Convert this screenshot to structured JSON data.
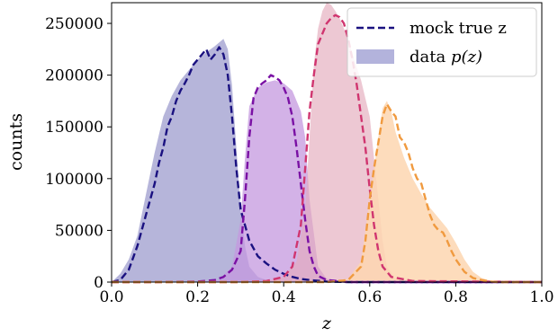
{
  "chart_data": {
    "type": "area",
    "xlabel": "z",
    "ylabel": "counts",
    "xlim": [
      0.0,
      1.0
    ],
    "ylim": [
      0,
      270000
    ],
    "x_ticks": [
      0.0,
      0.2,
      0.4,
      0.6,
      0.8,
      1.0
    ],
    "x_tick_labels": [
      "0.0",
      "0.2",
      "0.4",
      "0.6",
      "0.8",
      "1.0"
    ],
    "y_ticks": [
      0,
      50000,
      100000,
      150000,
      200000,
      250000
    ],
    "y_tick_labels": [
      "0",
      "50000",
      "100000",
      "150000",
      "200000",
      "250000"
    ],
    "grid": false,
    "legend": {
      "placement": "top-right",
      "entries": [
        {
          "label": "mock true z",
          "style": "dashed-line",
          "color": "#1a1180"
        },
        {
          "label": "data p(z)",
          "label_text": "data ",
          "label_math": "p(z)",
          "style": "filled",
          "color": "#b3b3dc"
        }
      ]
    },
    "series": [
      {
        "kind": "filled",
        "color": "#aeadd6",
        "opacity": 0.9,
        "x": [
          0.0,
          0.02,
          0.04,
          0.06,
          0.08,
          0.1,
          0.12,
          0.14,
          0.16,
          0.18,
          0.2,
          0.22,
          0.24,
          0.26,
          0.27,
          0.28,
          0.29,
          0.3,
          0.31,
          0.32,
          0.34,
          0.36,
          0.38,
          0.4,
          0.45,
          0.5,
          0.6,
          0.7,
          0.8,
          1.0
        ],
        "y": [
          0,
          8000,
          22000,
          45000,
          85000,
          125000,
          160000,
          180000,
          195000,
          205000,
          215000,
          222000,
          228000,
          235000,
          225000,
          190000,
          130000,
          70000,
          35000,
          15000,
          5000,
          2000,
          1000,
          500,
          0,
          0,
          0,
          0,
          0,
          0
        ]
      },
      {
        "kind": "filled",
        "color": "#c498df",
        "opacity": 0.75,
        "x": [
          0.0,
          0.1,
          0.2,
          0.25,
          0.28,
          0.3,
          0.31,
          0.32,
          0.34,
          0.36,
          0.38,
          0.4,
          0.42,
          0.44,
          0.45,
          0.46,
          0.48,
          0.5,
          0.55,
          0.6,
          0.7,
          1.0
        ],
        "y": [
          0,
          0,
          0,
          2000,
          15000,
          60000,
          120000,
          170000,
          188000,
          193000,
          195000,
          192000,
          185000,
          165000,
          140000,
          80000,
          15000,
          3000,
          0,
          0,
          0,
          0
        ],
        "peak": 195000
      },
      {
        "kind": "filled",
        "color": "#e3aabc",
        "opacity": 0.65,
        "x": [
          0.0,
          0.3,
          0.36,
          0.4,
          0.43,
          0.45,
          0.46,
          0.47,
          0.48,
          0.49,
          0.5,
          0.51,
          0.52,
          0.53,
          0.54,
          0.55,
          0.56,
          0.58,
          0.6,
          0.61,
          0.62,
          0.63,
          0.64,
          0.66,
          0.7,
          1.0
        ],
        "y": [
          0,
          0,
          1000,
          5000,
          20000,
          70000,
          140000,
          210000,
          245000,
          262000,
          270000,
          268000,
          262000,
          255000,
          245000,
          235000,
          220000,
          195000,
          160000,
          120000,
          80000,
          40000,
          15000,
          3000,
          0,
          0
        ],
        "peak": 270000
      },
      {
        "kind": "filled",
        "color": "#fdd6b0",
        "opacity": 0.85,
        "x": [
          0.0,
          0.5,
          0.55,
          0.58,
          0.6,
          0.62,
          0.63,
          0.64,
          0.65,
          0.66,
          0.68,
          0.7,
          0.72,
          0.74,
          0.76,
          0.78,
          0.8,
          0.82,
          0.84,
          0.86,
          0.88,
          0.9,
          0.95,
          1.0
        ],
        "y": [
          0,
          0,
          3000,
          20000,
          80000,
          140000,
          168000,
          175000,
          165000,
          145000,
          120000,
          100000,
          85000,
          72000,
          62000,
          52000,
          38000,
          22000,
          10000,
          4000,
          1500,
          500,
          0,
          0
        ],
        "peak": 175000
      },
      {
        "kind": "dashed",
        "name": "mock true z",
        "color": "#1a1180",
        "x": [
          0.0,
          0.02,
          0.04,
          0.06,
          0.08,
          0.1,
          0.11,
          0.12,
          0.13,
          0.14,
          0.15,
          0.16,
          0.17,
          0.18,
          0.19,
          0.2,
          0.21,
          0.22,
          0.23,
          0.24,
          0.25,
          0.26,
          0.27,
          0.28,
          0.29,
          0.3,
          0.32,
          0.34,
          0.36,
          0.38,
          0.4,
          0.42,
          0.44,
          0.46,
          0.5,
          0.55,
          0.6,
          1.0
        ],
        "y": [
          0,
          2000,
          12000,
          35000,
          65000,
          95000,
          115000,
          130000,
          150000,
          160000,
          175000,
          185000,
          192000,
          200000,
          210000,
          215000,
          220000,
          225000,
          215000,
          220000,
          227000,
          220000,
          200000,
          160000,
          110000,
          70000,
          40000,
          25000,
          18000,
          12000,
          8000,
          5000,
          3000,
          2000,
          500,
          0,
          0,
          0
        ]
      },
      {
        "kind": "dashed",
        "color": "#7a10a4",
        "x": [
          0.0,
          0.1,
          0.2,
          0.24,
          0.26,
          0.28,
          0.3,
          0.31,
          0.32,
          0.33,
          0.34,
          0.35,
          0.36,
          0.37,
          0.38,
          0.39,
          0.4,
          0.41,
          0.42,
          0.43,
          0.44,
          0.45,
          0.46,
          0.47,
          0.48,
          0.5,
          0.55,
          0.6,
          1.0
        ],
        "y": [
          0,
          0,
          500,
          2000,
          5000,
          12000,
          30000,
          80000,
          140000,
          178000,
          188000,
          192000,
          195000,
          200000,
          198000,
          195000,
          188000,
          178000,
          160000,
          130000,
          95000,
          60000,
          30000,
          15000,
          6000,
          2000,
          0,
          0,
          0
        ]
      },
      {
        "kind": "dashed",
        "color": "#d0356f",
        "x": [
          0.0,
          0.3,
          0.36,
          0.4,
          0.42,
          0.44,
          0.45,
          0.46,
          0.47,
          0.48,
          0.49,
          0.5,
          0.51,
          0.52,
          0.53,
          0.54,
          0.55,
          0.56,
          0.57,
          0.58,
          0.59,
          0.6,
          0.61,
          0.62,
          0.63,
          0.65,
          0.7,
          1.0
        ],
        "y": [
          0,
          0,
          1000,
          5000,
          15000,
          55000,
          110000,
          165000,
          200000,
          230000,
          240000,
          250000,
          255000,
          258000,
          256000,
          250000,
          235000,
          215000,
          190000,
          160000,
          130000,
          90000,
          55000,
          30000,
          15000,
          5000,
          1000,
          0
        ]
      },
      {
        "kind": "dashed",
        "color": "#f09a3f",
        "x": [
          0.0,
          0.5,
          0.55,
          0.58,
          0.59,
          0.6,
          0.61,
          0.62,
          0.63,
          0.64,
          0.65,
          0.66,
          0.67,
          0.68,
          0.69,
          0.7,
          0.71,
          0.72,
          0.73,
          0.74,
          0.75,
          0.76,
          0.77,
          0.78,
          0.79,
          0.8,
          0.82,
          0.84,
          0.86,
          0.88,
          0.9,
          1.0
        ],
        "y": [
          0,
          0,
          2000,
          15000,
          40000,
          80000,
          110000,
          135000,
          160000,
          172000,
          165000,
          160000,
          140000,
          135000,
          125000,
          110000,
          100000,
          95000,
          80000,
          65000,
          55000,
          50000,
          48000,
          40000,
          30000,
          22000,
          10000,
          4000,
          2000,
          500,
          0,
          0
        ]
      }
    ]
  }
}
